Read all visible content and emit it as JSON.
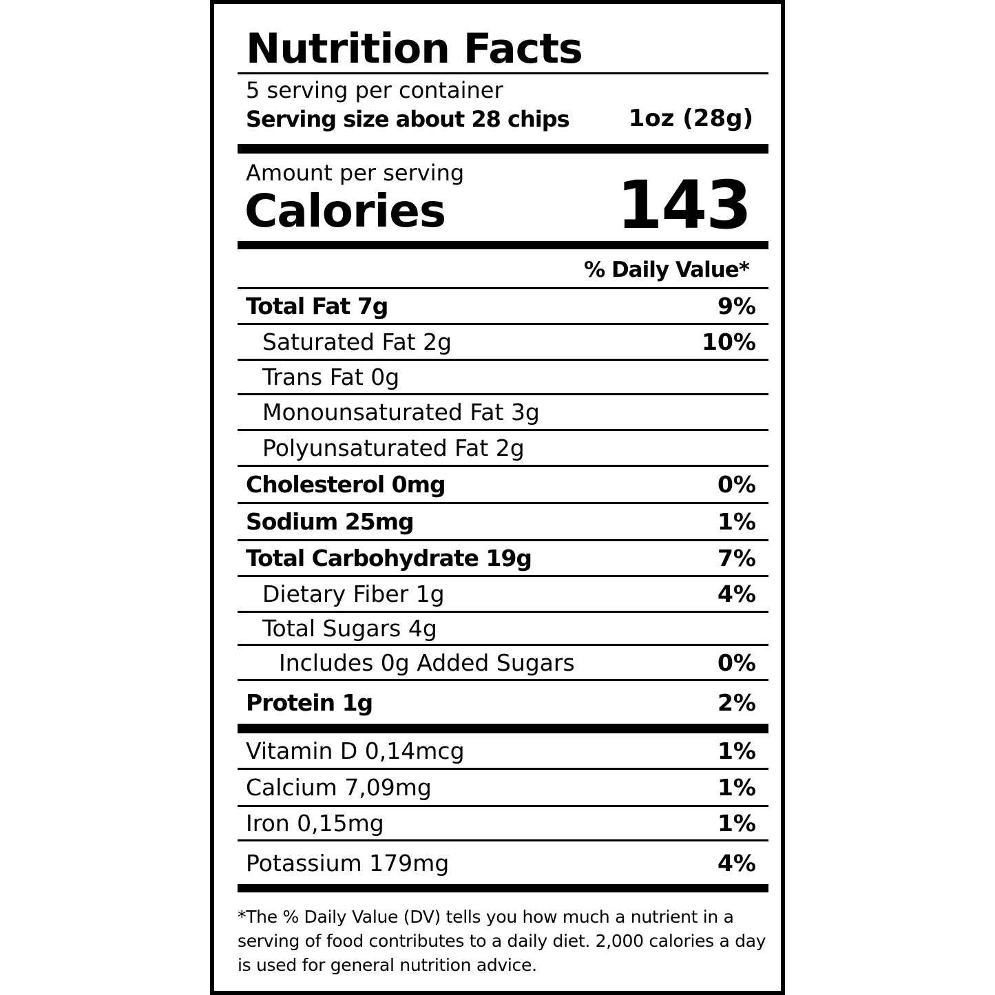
{
  "header": {
    "title": "Nutrition Facts",
    "servings": "5 serving per container",
    "serving_size": "Serving size about 28 chips",
    "serving_amount": "1oz (28g)"
  },
  "calories": {
    "caption": "Amount per serving",
    "label": "Calories",
    "value": "143"
  },
  "dv_header": "% Daily Value*",
  "nutrients": [
    {
      "name": "Total Fat 7g",
      "dv": "9%"
    },
    {
      "name": "Saturated Fat 2g",
      "dv": "10%"
    },
    {
      "name": "Trans Fat 0g"
    },
    {
      "name": "Monounsaturated Fat 3g"
    },
    {
      "name": "Polyunsaturated Fat 2g"
    },
    {
      "name": "Cholesterol 0mg",
      "dv": "0%"
    },
    {
      "name": "Sodium 25mg",
      "dv": "1%"
    },
    {
      "name": "Total Carbohydrate 19g",
      "dv": "7%"
    },
    {
      "name": "Dietary Fiber 1g",
      "dv": "4%"
    },
    {
      "name": "Total Sugars 4g"
    },
    {
      "name": "Includes 0g Added Sugars",
      "dv": "0%"
    },
    {
      "name": "Protein 1g",
      "dv": "2%"
    }
  ],
  "vitamins": [
    {
      "name": "Vitamin D 0,14mcg",
      "dv": "1%"
    },
    {
      "name": "Calcium 7,09mg",
      "dv": "1%"
    },
    {
      "name": "Iron 0,15mg",
      "dv": "1%"
    },
    {
      "name": "Potassium 179mg",
      "dv": "4%"
    }
  ],
  "footnote": "*The % Daily Value (DV) tells you how much a nutrient in a serving of food contributes to a daily diet. 2,000 calories a day is used for general nutrition advice."
}
